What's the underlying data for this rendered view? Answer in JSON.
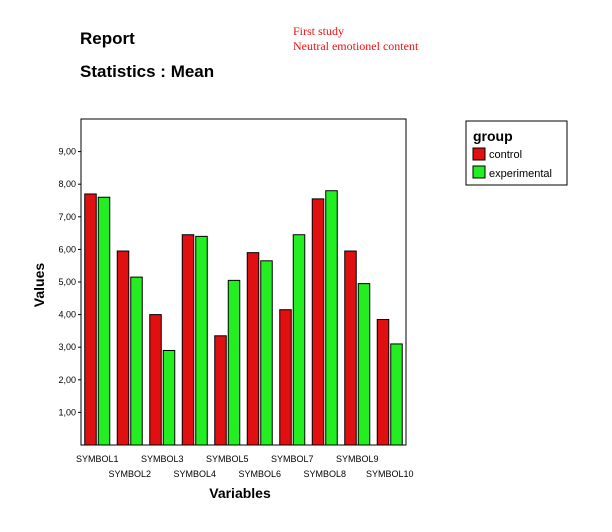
{
  "report": {
    "title": "Report",
    "subtitle": "Statistics : Mean",
    "note_line1": "First study",
    "note_line2": "Neutral emotionel content"
  },
  "chart_data": {
    "type": "bar",
    "categories": [
      "SYMBOL1",
      "SYMBOL2",
      "SYMBOL3",
      "SYMBOL4",
      "SYMBOL5",
      "SYMBOL6",
      "SYMBOL7",
      "SYMBOL8",
      "SYMBOL9",
      "SYMBOL10"
    ],
    "series": [
      {
        "name": "control",
        "color": "#e01010",
        "values": [
          7.7,
          5.95,
          4.0,
          6.45,
          3.35,
          5.9,
          4.15,
          7.55,
          5.95,
          3.85
        ]
      },
      {
        "name": "experimental",
        "color": "#22ee22",
        "values": [
          7.6,
          5.15,
          2.9,
          6.4,
          5.05,
          5.65,
          6.45,
          7.8,
          4.95,
          3.1
        ]
      }
    ],
    "ylim": [
      0,
      10
    ],
    "yticks": [
      "1,00",
      "2,00",
      "3,00",
      "4,00",
      "5,00",
      "6,00",
      "7,00",
      "8,00",
      "9,00"
    ],
    "ytick_values": [
      1,
      2,
      3,
      4,
      5,
      6,
      7,
      8,
      9
    ],
    "xlabel": "Variables",
    "ylabel": "Values",
    "legend": {
      "title": "group",
      "position": "right"
    },
    "grid": false
  }
}
